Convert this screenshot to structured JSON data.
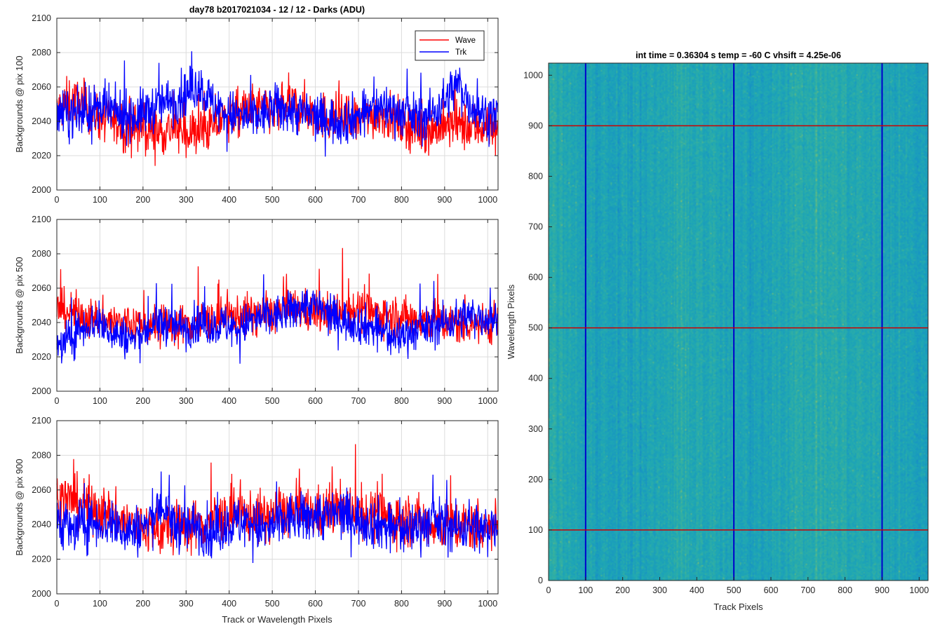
{
  "figure": {
    "title": "day78 b2017021034 - 12 / 12 - Darks (ADU)",
    "x_label_left": "Track or Wavelength Pixels"
  },
  "chart_data": [
    {
      "type": "line",
      "ylabel": "Backgrounds @ pix 100",
      "xlim": [
        0,
        1024
      ],
      "ylim": [
        2000,
        2100
      ],
      "xticks": [
        0,
        100,
        200,
        300,
        400,
        500,
        600,
        700,
        800,
        900,
        1000
      ],
      "yticks": [
        2000,
        2020,
        2040,
        2060,
        2080,
        2100
      ],
      "grid": true,
      "legend": {
        "placement": "top-right",
        "entries": [
          "Wave",
          "Trk"
        ]
      },
      "series": [
        {
          "name": "Wave",
          "color": "#ff0000",
          "x": [
            0,
            30,
            60,
            90,
            120,
            150,
            180,
            210,
            240,
            270,
            300,
            330,
            360,
            390,
            420,
            450,
            480,
            510,
            540,
            570,
            600,
            630,
            660,
            690,
            720,
            750,
            780,
            810,
            840,
            870,
            900,
            930,
            960,
            990,
            1023
          ],
          "y": [
            2046,
            2052,
            2050,
            2044,
            2040,
            2038,
            2036,
            2035,
            2034,
            2036,
            2033,
            2034,
            2036,
            2042,
            2044,
            2048,
            2047,
            2046,
            2050,
            2048,
            2044,
            2043,
            2042,
            2040,
            2042,
            2045,
            2042,
            2038,
            2036,
            2035,
            2037,
            2038,
            2036,
            2037,
            2038
          ]
        },
        {
          "name": "Trk",
          "color": "#0000ff",
          "x": [
            0,
            30,
            60,
            90,
            120,
            150,
            180,
            210,
            240,
            270,
            300,
            330,
            360,
            390,
            420,
            450,
            480,
            510,
            540,
            570,
            600,
            630,
            660,
            690,
            720,
            750,
            780,
            810,
            840,
            870,
            900,
            930,
            960,
            990,
            1023
          ],
          "y": [
            2043,
            2044,
            2045,
            2047,
            2046,
            2044,
            2043,
            2046,
            2050,
            2052,
            2056,
            2062,
            2050,
            2045,
            2043,
            2042,
            2044,
            2048,
            2046,
            2045,
            2042,
            2041,
            2040,
            2042,
            2046,
            2048,
            2047,
            2044,
            2042,
            2044,
            2052,
            2062,
            2050,
            2044,
            2043
          ]
        }
      ]
    },
    {
      "type": "line",
      "ylabel": "Backgrounds @ pix 500",
      "xlim": [
        0,
        1024
      ],
      "ylim": [
        2000,
        2100
      ],
      "xticks": [
        0,
        100,
        200,
        300,
        400,
        500,
        600,
        700,
        800,
        900,
        1000
      ],
      "yticks": [
        2000,
        2020,
        2040,
        2060,
        2080,
        2100
      ],
      "grid": true,
      "series": [
        {
          "name": "Wave",
          "color": "#ff0000",
          "x": [
            0,
            30,
            60,
            90,
            120,
            150,
            180,
            210,
            240,
            270,
            300,
            330,
            360,
            390,
            420,
            450,
            480,
            510,
            540,
            570,
            600,
            630,
            660,
            690,
            720,
            750,
            780,
            810,
            840,
            870,
            900,
            930,
            960,
            990,
            1023
          ],
          "y": [
            2048,
            2046,
            2044,
            2042,
            2041,
            2040,
            2039,
            2038,
            2037,
            2038,
            2039,
            2040,
            2041,
            2043,
            2044,
            2045,
            2044,
            2046,
            2048,
            2047,
            2046,
            2045,
            2047,
            2048,
            2046,
            2045,
            2044,
            2043,
            2042,
            2041,
            2040,
            2039,
            2040,
            2039,
            2040
          ]
        },
        {
          "name": "Trk",
          "color": "#0000ff",
          "x": [
            0,
            30,
            60,
            90,
            120,
            150,
            180,
            210,
            240,
            270,
            300,
            330,
            360,
            390,
            420,
            450,
            480,
            510,
            540,
            570,
            600,
            630,
            660,
            690,
            720,
            750,
            780,
            810,
            840,
            870,
            900,
            930,
            960,
            990,
            1023
          ],
          "y": [
            2026,
            2030,
            2038,
            2040,
            2036,
            2032,
            2030,
            2036,
            2040,
            2038,
            2037,
            2040,
            2038,
            2039,
            2036,
            2041,
            2043,
            2044,
            2046,
            2050,
            2050,
            2044,
            2042,
            2040,
            2038,
            2036,
            2030,
            2034,
            2036,
            2038,
            2040,
            2042,
            2044,
            2043,
            2042
          ]
        }
      ]
    },
    {
      "type": "line",
      "ylabel": "Backgrounds @ pix 900",
      "xlim": [
        0,
        1024
      ],
      "ylim": [
        2000,
        2100
      ],
      "xticks": [
        0,
        100,
        200,
        300,
        400,
        500,
        600,
        700,
        800,
        900,
        1000
      ],
      "yticks": [
        2000,
        2020,
        2040,
        2060,
        2080,
        2100
      ],
      "grid": true,
      "series": [
        {
          "name": "Wave",
          "color": "#ff0000",
          "x": [
            0,
            30,
            60,
            90,
            120,
            150,
            180,
            210,
            240,
            270,
            300,
            330,
            360,
            390,
            420,
            450,
            480,
            510,
            540,
            570,
            600,
            630,
            660,
            690,
            720,
            750,
            780,
            810,
            840,
            870,
            900,
            930,
            960,
            990,
            1023
          ],
          "y": [
            2056,
            2054,
            2052,
            2050,
            2046,
            2042,
            2040,
            2038,
            2036,
            2038,
            2039,
            2040,
            2042,
            2044,
            2046,
            2045,
            2044,
            2046,
            2048,
            2047,
            2046,
            2048,
            2050,
            2048,
            2046,
            2045,
            2044,
            2043,
            2042,
            2041,
            2040,
            2039,
            2040,
            2039,
            2040
          ]
        },
        {
          "name": "Trk",
          "color": "#0000ff",
          "x": [
            0,
            30,
            60,
            90,
            120,
            150,
            180,
            210,
            240,
            270,
            300,
            330,
            360,
            390,
            420,
            450,
            480,
            510,
            540,
            570,
            600,
            630,
            660,
            690,
            720,
            750,
            780,
            810,
            840,
            870,
            900,
            930,
            960,
            990,
            1023
          ],
          "y": [
            2046,
            2036,
            2040,
            2042,
            2040,
            2038,
            2036,
            2040,
            2052,
            2040,
            2038,
            2040,
            2034,
            2040,
            2041,
            2042,
            2036,
            2040,
            2044,
            2043,
            2046,
            2045,
            2046,
            2044,
            2042,
            2040,
            2038,
            2036,
            2040,
            2042,
            2040,
            2038,
            2040,
            2036,
            2042
          ]
        }
      ]
    },
    {
      "type": "heatmap",
      "title": "int time = 0.36304 s   temp = -60 C   vhsift = 4.25e-06",
      "xlabel": "Track Pixels",
      "ylabel": "Wavelength Pixels",
      "xlim": [
        0,
        1024
      ],
      "ylim": [
        0,
        1024
      ],
      "xticks": [
        0,
        100,
        200,
        300,
        400,
        500,
        600,
        700,
        800,
        900,
        1000
      ],
      "yticks": [
        0,
        100,
        200,
        300,
        400,
        500,
        600,
        700,
        800,
        900,
        1000
      ],
      "colormap": [
        "#1a6fc9",
        "#1793c4",
        "#1fa7b4",
        "#3cb39a",
        "#8cc069"
      ],
      "column_means_norm": [
        0.62,
        0.58,
        0.55,
        0.52,
        0.5,
        0.46,
        0.45,
        0.44,
        0.43,
        0.45,
        0.46,
        0.47,
        0.46,
        0.45,
        0.44,
        0.43,
        0.44,
        0.46,
        0.48,
        0.5,
        0.52,
        0.54,
        0.55,
        0.56,
        0.55,
        0.54,
        0.52,
        0.5,
        0.48,
        0.47,
        0.46,
        0.45,
        0.44,
        0.43,
        0.44,
        0.46,
        0.48,
        0.5,
        0.52,
        0.53,
        0.54,
        0.55,
        0.56,
        0.57,
        0.58,
        0.59,
        0.58,
        0.57,
        0.56,
        0.55,
        0.54,
        0.53,
        0.52,
        0.51,
        0.5,
        0.49,
        0.48,
        0.47,
        0.46,
        0.45,
        0.44,
        0.43,
        0.42,
        0.42
      ],
      "vertical_lines": {
        "x": [
          100,
          500,
          900
        ],
        "color": "#0000cc"
      },
      "horizontal_lines": {
        "y": [
          100,
          500,
          900
        ],
        "color": "#cc0000"
      }
    }
  ]
}
